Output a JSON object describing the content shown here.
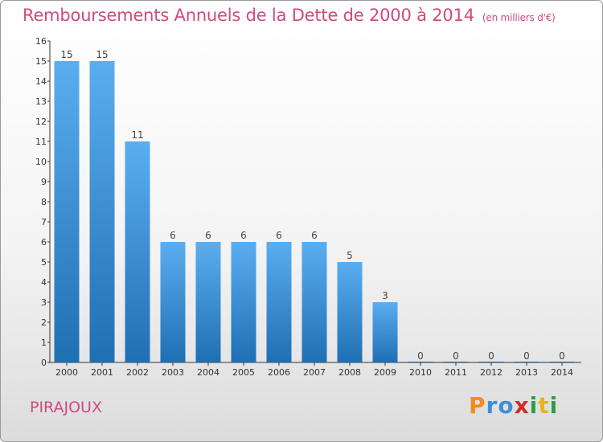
{
  "header": {
    "title": "Remboursements Annuels de la Dette de 2000 à 2014",
    "unit": "(en milliers d'€)"
  },
  "footer": {
    "commune": "PIRAJOUX",
    "logo_letters": [
      "P",
      "r",
      "o",
      "x",
      "i",
      "t",
      "i"
    ],
    "logo_colors": [
      "#f28c1e",
      "#3b8fd8",
      "#3b8fd8",
      "#d12c2c",
      "#2e9e4a",
      "#e8b21a",
      "#2e9e4a"
    ]
  },
  "colors": {
    "bar_top": "#5aaef0",
    "bar_bottom": "#1f6fb3",
    "text_accent": "#d04a7f",
    "axis": "#333333"
  },
  "chart_data": {
    "type": "bar",
    "title": "Remboursements Annuels de la Dette de 2000 à 2014",
    "subtitle": "(en milliers d'€)",
    "categories": [
      "2000",
      "2001",
      "2002",
      "2003",
      "2004",
      "2005",
      "2006",
      "2007",
      "2008",
      "2009",
      "2010",
      "2011",
      "2012",
      "2013",
      "2014"
    ],
    "values": [
      15,
      15,
      11,
      6,
      6,
      6,
      6,
      6,
      5,
      3,
      0,
      0,
      0,
      0,
      0
    ],
    "ylim": [
      0,
      16
    ],
    "yticks": [
      0,
      1,
      2,
      3,
      4,
      5,
      6,
      7,
      8,
      9,
      10,
      11,
      12,
      13,
      14,
      15,
      16
    ],
    "grid": false,
    "legend": "none"
  }
}
